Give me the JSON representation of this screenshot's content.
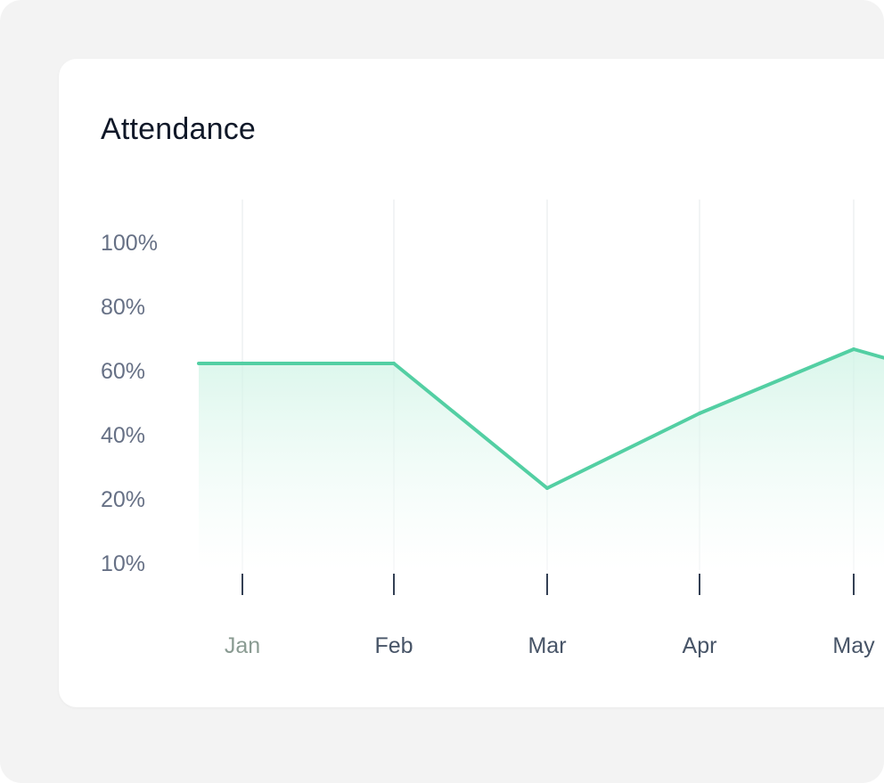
{
  "title": "Attendance",
  "colors": {
    "line": "#53cfa3",
    "fill_top": "#cdf3e4",
    "fill_bottom": "#ffffff",
    "grid": "#eef0f2",
    "tick": "#344054",
    "first_label": "#8a9b92"
  },
  "chart_data": {
    "type": "area",
    "title": "Attendance",
    "x": [
      "Jan",
      "Feb",
      "Mar",
      "Apr",
      "May"
    ],
    "y_ticks": [
      "100%",
      "80%",
      "60%",
      "40%",
      "20%",
      "10%"
    ],
    "series": [
      {
        "values": [
          66,
          66,
          31,
          52,
          70
        ]
      }
    ],
    "ylim": [
      10,
      100
    ],
    "grid": true
  }
}
